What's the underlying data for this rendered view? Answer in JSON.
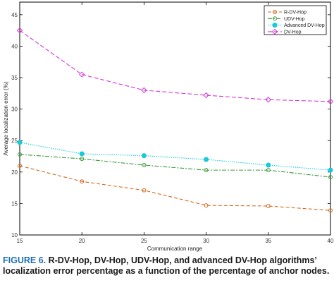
{
  "chart_data": {
    "type": "line",
    "title": "",
    "xlabel": "Communication range",
    "ylabel": "Average localization error (%)",
    "x": [
      15,
      20,
      25,
      30,
      35,
      40
    ],
    "xticks": [
      "15",
      "20",
      "25",
      "30",
      "35",
      "40"
    ],
    "xlim": [
      15,
      40
    ],
    "yticks": [
      "10",
      "15",
      "20",
      "25",
      "30",
      "35",
      "40",
      "45"
    ],
    "ylim": [
      10,
      47
    ],
    "grid": false,
    "legend_position": "top-right",
    "series": [
      {
        "name": "R-DV-Hop",
        "values": [
          21.0,
          18.5,
          17.1,
          14.7,
          14.6,
          13.9
        ],
        "color": "#d46a1e",
        "dash": "5,3",
        "marker": "circle"
      },
      {
        "name": "UDV-Hop",
        "values": [
          22.8,
          22.1,
          21.1,
          20.3,
          20.3,
          19.2
        ],
        "color": "#3a9a3a",
        "dash": "6,2,2,2",
        "marker": "circle"
      },
      {
        "name": "Advanced DV-Hop",
        "values": [
          24.7,
          22.9,
          22.6,
          22.0,
          21.1,
          20.3
        ],
        "color": "#18c9d8",
        "dash": "1.5,1.5",
        "marker": "filled-circle"
      },
      {
        "name": "DV-Hop",
        "values": [
          42.5,
          35.5,
          33.0,
          32.2,
          31.5,
          31.2
        ],
        "color": "#d23ad6",
        "dash": "6,3",
        "marker": "diamond"
      }
    ]
  },
  "caption": {
    "figure_label": "FIGURE 6.",
    "text": "R-DV-Hop, DV-Hop, UDV-Hop, and advanced DV-Hop algorithms’ localization error percentage as a function of the percentage of anchor nodes."
  }
}
